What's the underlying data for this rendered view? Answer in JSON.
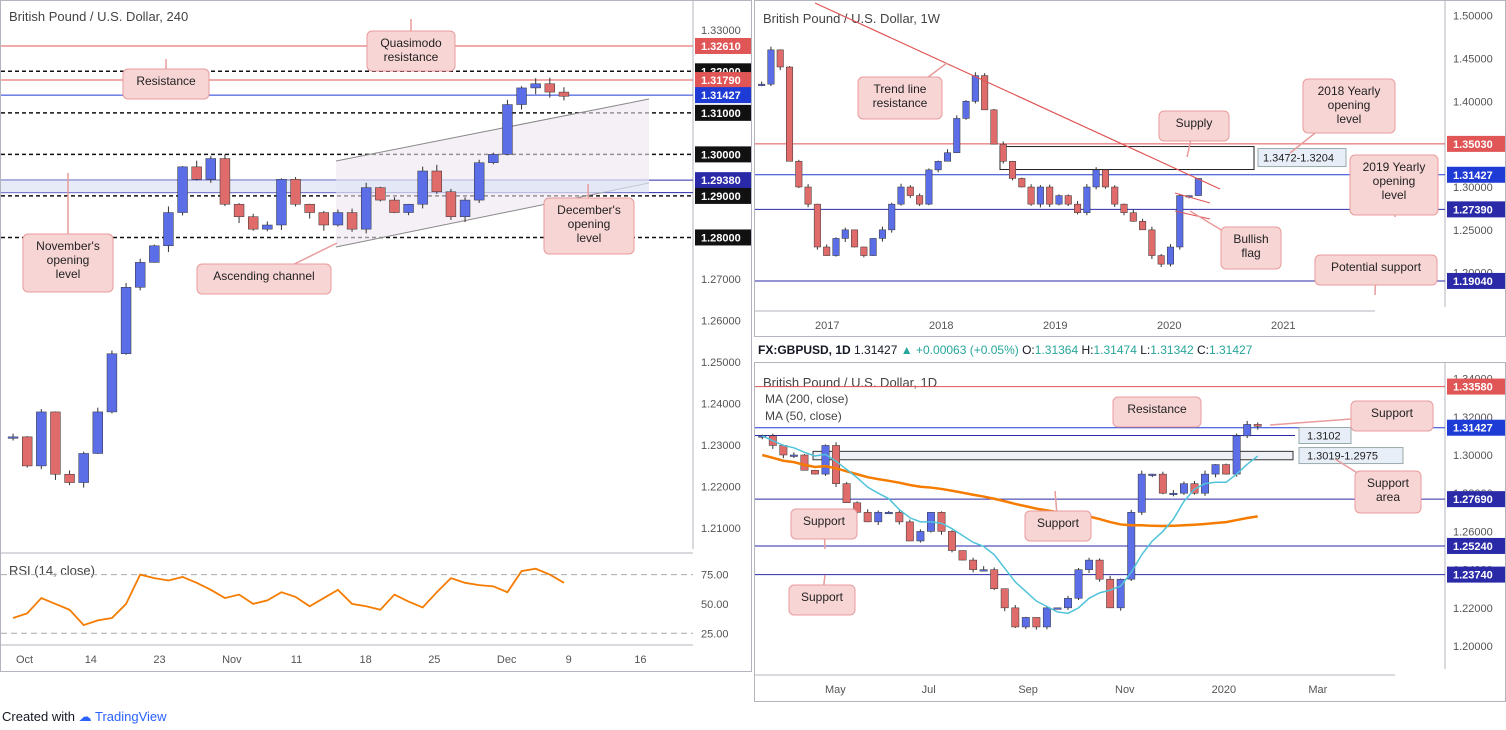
{
  "footer": {
    "created": "Created with",
    "brand": "TradingView"
  },
  "info": {
    "symbol": "FX:GBPUSD, 1D",
    "last": "1.31427",
    "change": "+0.00063 (+0.05%)",
    "o_label": "O:",
    "o": "1.31364",
    "h_label": "H:",
    "h": "1.31474",
    "l_label": "L:",
    "l": "1.31342",
    "c_label": "C:",
    "c": "1.31427"
  },
  "colors": {
    "bull": "#5b6ee8",
    "bear": "#e06b6b",
    "resistance": "#e05555",
    "support": "#2a2aa8",
    "callout_bg": "#f8d5d5",
    "callout_border": "#e89c9c",
    "rsi": "#f57c00",
    "ma200": "#f57c00",
    "ma50": "#4fc3d9"
  },
  "chart_data": [
    {
      "id": "h4",
      "type": "candlestick",
      "title": "British Pound / U.S. Dollar, 240",
      "ylim": [
        1.205,
        1.335
      ],
      "x_ticks": [
        "Oct",
        "14",
        "23",
        "Nov",
        "11",
        "18",
        "25",
        "Dec",
        "9",
        "16"
      ],
      "y_ticks": [
        "1.33000",
        "1.32000",
        "1.31000",
        "1.30000",
        "1.29000",
        "1.28000",
        "1.27000",
        "1.26000",
        "1.25000",
        "1.24000",
        "1.23000",
        "1.22000",
        "1.21000"
      ],
      "series": [
        {
          "values": [
            1.232,
            1.225,
            1.238,
            1.223,
            1.221,
            1.228,
            1.238,
            1.252,
            1.268,
            1.274,
            1.278,
            1.286,
            1.297,
            1.294,
            1.299,
            1.288,
            1.285,
            1.282,
            1.283,
            1.294,
            1.288,
            1.286,
            1.283,
            1.286,
            1.282,
            1.292,
            1.289,
            1.286,
            1.288,
            1.296,
            1.291,
            1.285,
            1.289,
            1.298,
            1.3,
            1.312,
            1.316,
            1.317,
            1.315,
            1.314
          ]
        }
      ],
      "levels": [
        {
          "value": "1.32610",
          "kind": "resistance"
        },
        {
          "value": "1.32000",
          "kind": "round"
        },
        {
          "value": "1.31790",
          "kind": "resistance"
        },
        {
          "value": "1.31427",
          "kind": "price"
        },
        {
          "value": "1.31000",
          "kind": "round"
        },
        {
          "value": "1.30000",
          "kind": "round"
        },
        {
          "value": "1.29380",
          "kind": "support"
        },
        {
          "value": "1.29080",
          "kind": "support"
        },
        {
          "value": "1.29000",
          "kind": "round"
        },
        {
          "value": "1.28000",
          "kind": "round"
        }
      ],
      "annotations": [
        "Quasimodo resistance",
        "Resistance",
        "November's opening level",
        "December's opening level",
        "Ascending channel"
      ]
    },
    {
      "id": "rsi",
      "type": "line",
      "title": "RSI (14, close)",
      "ylim": [
        15,
        90
      ],
      "y_ticks": [
        "75.00",
        "50.00",
        "25.00"
      ],
      "values": [
        38,
        42,
        55,
        50,
        45,
        32,
        36,
        38,
        50,
        75,
        72,
        70,
        73,
        68,
        62,
        55,
        58,
        50,
        53,
        60,
        56,
        48,
        55,
        62,
        50,
        48,
        45,
        58,
        52,
        47,
        60,
        72,
        68,
        66,
        65,
        60,
        78,
        80,
        75,
        68
      ]
    },
    {
      "id": "w1",
      "type": "candlestick",
      "title": "British Pound / U.S. Dollar, 1W",
      "ylim": [
        1.16,
        1.51
      ],
      "x_ticks": [
        "2017",
        "2018",
        "2019",
        "2020",
        "2021"
      ],
      "y_ticks": [
        "1.50000",
        "1.45000",
        "1.40000",
        "1.35000",
        "1.30000",
        "1.25000",
        "1.20000"
      ],
      "series": [
        {
          "values": [
            1.42,
            1.46,
            1.44,
            1.33,
            1.3,
            1.28,
            1.23,
            1.22,
            1.24,
            1.25,
            1.23,
            1.22,
            1.24,
            1.25,
            1.28,
            1.3,
            1.29,
            1.28,
            1.32,
            1.33,
            1.34,
            1.38,
            1.4,
            1.43,
            1.39,
            1.35,
            1.33,
            1.31,
            1.3,
            1.28,
            1.3,
            1.28,
            1.29,
            1.28,
            1.27,
            1.3,
            1.32,
            1.3,
            1.28,
            1.27,
            1.26,
            1.25,
            1.22,
            1.21,
            1.23,
            1.29,
            1.29,
            1.31
          ]
        }
      ],
      "levels": [
        {
          "value": "1.35030",
          "kind": "resistance"
        },
        {
          "value": "1.31427",
          "kind": "price"
        },
        {
          "value": "1.27390",
          "kind": "support"
        },
        {
          "value": "1.19040",
          "kind": "support"
        }
      ],
      "zone_label": "1.3472-1.3204",
      "annotations": [
        "Trend line resistance",
        "Supply",
        "2018 Yearly opening level",
        "2019 Yearly opening level",
        "Bullish flag",
        "Potential support"
      ]
    },
    {
      "id": "d1",
      "type": "candlestick",
      "title": "British Pound / U.S. Dollar, 1D",
      "ylim": [
        1.188,
        1.345
      ],
      "legend": [
        "MA (200, close)",
        "MA (50, close)"
      ],
      "x_ticks": [
        "May",
        "Jul",
        "Sep",
        "Nov",
        "2020",
        "Mar"
      ],
      "y_ticks": [
        "1.34000",
        "1.32000",
        "1.30000",
        "1.28000",
        "1.26000",
        "1.24000",
        "1.22000",
        "1.20000"
      ],
      "series": [
        {
          "values": [
            1.31,
            1.305,
            1.3,
            1.3,
            1.292,
            1.29,
            1.305,
            1.285,
            1.275,
            1.27,
            1.265,
            1.27,
            1.27,
            1.265,
            1.255,
            1.26,
            1.27,
            1.26,
            1.25,
            1.245,
            1.24,
            1.24,
            1.23,
            1.22,
            1.21,
            1.215,
            1.21,
            1.22,
            1.22,
            1.225,
            1.24,
            1.245,
            1.235,
            1.22,
            1.235,
            1.27,
            1.29,
            1.29,
            1.28,
            1.28,
            1.285,
            1.28,
            1.29,
            1.295,
            1.29,
            1.31,
            1.316,
            1.315
          ]
        }
      ],
      "levels": [
        {
          "value": "1.33580",
          "kind": "resistance"
        },
        {
          "value": "1.31427",
          "kind": "price"
        },
        {
          "value": "1.27690",
          "kind": "support"
        },
        {
          "value": "1.25240",
          "kind": "support"
        },
        {
          "value": "1.23740",
          "kind": "support"
        }
      ],
      "zone_labels": [
        "1.3102",
        "1.3019-1.2975"
      ],
      "annotations": [
        "Resistance",
        "Support",
        "Support area",
        "Support",
        "Support",
        "Support"
      ]
    }
  ]
}
